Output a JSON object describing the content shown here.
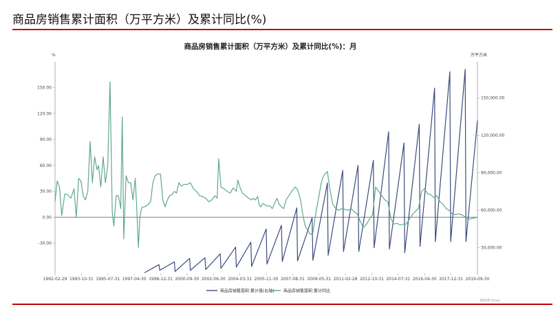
{
  "header": {
    "title": "商品房销售累计面积（万平方米）及累计同比(%)",
    "accent_color": "#c00000"
  },
  "chart_data": {
    "type": "line",
    "title": "商品房销售累计面积（万平方米）及累计同比(%)：月",
    "left_axis_unit": "%",
    "right_axis_unit": "万平方米",
    "y_left_ticks": [
      "150.00",
      "120.00",
      "90.00",
      "60.00",
      "30.00",
      "0.00",
      "-30.00"
    ],
    "y_left_values": [
      150,
      120,
      90,
      60,
      30,
      0,
      -30
    ],
    "y_left_range": [
      -65,
      180
    ],
    "y_right_ticks": [
      "150,000.00",
      "120,000.00",
      "90,000.00",
      "60,000.00",
      "30,000.00"
    ],
    "y_right_values": [
      150000,
      120000,
      90000,
      60000,
      30000
    ],
    "y_right_range": [
      9500,
      179000
    ],
    "x_ticks": [
      "1992-02-29",
      "1993-10-31",
      "1995-07-31",
      "1997-04-30",
      "1998-12-31",
      "2000-09-30",
      "2002-06-30",
      "2004-03-31",
      "2005-11-30",
      "2007-08-31",
      "2009-05-31",
      "2011-02-28",
      "2012-10-31",
      "2014-07-31",
      "2016-04-30",
      "2017-12-31",
      "2019-09-30"
    ],
    "x_range": [
      1992.16,
      2019.75
    ],
    "grid": false,
    "legend_position": "bottom",
    "series": [
      {
        "name": "商品房销售面积:累计值(右轴)",
        "axis": "right",
        "color": "#3b4a7a",
        "points": [
          [
            1998.0,
            10000
          ],
          [
            1998.95,
            16500
          ],
          [
            1999.0,
            12000
          ],
          [
            1999.95,
            18700
          ],
          [
            2000.0,
            11000
          ],
          [
            2000.95,
            21500
          ],
          [
            2001.0,
            12000
          ],
          [
            2001.95,
            22000
          ],
          [
            2002.0,
            12500
          ],
          [
            2002.95,
            25200
          ],
          [
            2003.0,
            13500
          ],
          [
            2003.95,
            30500
          ],
          [
            2004.0,
            14500
          ],
          [
            2004.95,
            34500
          ],
          [
            2005.0,
            15000
          ],
          [
            2005.95,
            45000
          ],
          [
            2006.0,
            17000
          ],
          [
            2006.95,
            48000
          ],
          [
            2007.0,
            19000
          ],
          [
            2007.95,
            62000
          ],
          [
            2008.0,
            19500
          ],
          [
            2008.95,
            54000
          ],
          [
            2009.0,
            20000
          ],
          [
            2009.95,
            82000
          ],
          [
            2010.0,
            24000
          ],
          [
            2010.95,
            92000
          ],
          [
            2011.0,
            27000
          ],
          [
            2011.95,
            96000
          ],
          [
            2012.0,
            27000
          ],
          [
            2012.95,
            100000
          ],
          [
            2013.0,
            30000
          ],
          [
            2013.95,
            123000
          ],
          [
            2014.0,
            29000
          ],
          [
            2014.95,
            114000
          ],
          [
            2015.0,
            26000
          ],
          [
            2015.95,
            129000
          ],
          [
            2016.0,
            31000
          ],
          [
            2016.95,
            158000
          ],
          [
            2017.0,
            35000
          ],
          [
            2017.95,
            171000
          ],
          [
            2018.0,
            35000
          ],
          [
            2018.95,
            173000
          ],
          [
            2019.0,
            35000
          ],
          [
            2019.75,
            132000
          ]
        ]
      },
      {
        "name": "商品房销售面积:累计同比",
        "axis": "left",
        "color": "#5fa88a",
        "points": [
          [
            1992.16,
            18
          ],
          [
            1992.3,
            42
          ],
          [
            1992.45,
            35
          ],
          [
            1992.6,
            2
          ],
          [
            1992.8,
            27
          ],
          [
            1993.0,
            26
          ],
          [
            1993.2,
            22
          ],
          [
            1993.4,
            33
          ],
          [
            1993.55,
            0
          ],
          [
            1993.7,
            45
          ],
          [
            1993.85,
            42
          ],
          [
            1994.0,
            25
          ],
          [
            1994.15,
            20
          ],
          [
            1994.3,
            30
          ],
          [
            1994.45,
            88
          ],
          [
            1994.6,
            40
          ],
          [
            1994.75,
            70
          ],
          [
            1994.9,
            55
          ],
          [
            1995.0,
            60
          ],
          [
            1995.15,
            35
          ],
          [
            1995.3,
            70
          ],
          [
            1995.45,
            40
          ],
          [
            1995.6,
            60
          ],
          [
            1995.75,
            157
          ],
          [
            1995.9,
            5
          ],
          [
            1996.0,
            -10
          ],
          [
            1996.15,
            25
          ],
          [
            1996.3,
            25
          ],
          [
            1996.45,
            10
          ],
          [
            1996.55,
            116
          ],
          [
            1996.65,
            -25
          ],
          [
            1996.8,
            48
          ],
          [
            1996.95,
            40
          ],
          [
            1997.1,
            40
          ],
          [
            1997.25,
            20
          ],
          [
            1997.4,
            45
          ],
          [
            1997.5,
            10
          ],
          [
            1997.6,
            -35
          ],
          [
            1997.7,
            0
          ],
          [
            1997.8,
            10
          ],
          [
            1997.9,
            12
          ],
          [
            1998.0,
            12
          ],
          [
            1998.2,
            14
          ],
          [
            1998.4,
            18
          ],
          [
            1998.55,
            40
          ],
          [
            1998.7,
            48
          ],
          [
            1998.85,
            50
          ],
          [
            1999.05,
            50
          ],
          [
            1999.2,
            20
          ],
          [
            1999.35,
            12
          ],
          [
            1999.5,
            20
          ],
          [
            1999.65,
            25
          ],
          [
            1999.8,
            26
          ],
          [
            1999.95,
            30
          ],
          [
            2000.1,
            28
          ],
          [
            2000.25,
            40
          ],
          [
            2000.4,
            36
          ],
          [
            2000.6,
            38
          ],
          [
            2000.8,
            38
          ],
          [
            2001.0,
            40
          ],
          [
            2001.2,
            33
          ],
          [
            2001.4,
            30
          ],
          [
            2001.6,
            25
          ],
          [
            2001.8,
            24
          ],
          [
            2002.0,
            22
          ],
          [
            2002.2,
            18
          ],
          [
            2002.4,
            20
          ],
          [
            2002.6,
            25
          ],
          [
            2002.75,
            22
          ],
          [
            2002.85,
            68
          ],
          [
            2003.0,
            35
          ],
          [
            2003.2,
            33
          ],
          [
            2003.4,
            30
          ],
          [
            2003.6,
            28
          ],
          [
            2003.8,
            34
          ],
          [
            2004.0,
            30
          ],
          [
            2004.1,
            43
          ],
          [
            2004.25,
            34
          ],
          [
            2004.4,
            28
          ],
          [
            2004.6,
            25
          ],
          [
            2004.8,
            22
          ],
          [
            2005.0,
            20
          ],
          [
            2005.1,
            22
          ],
          [
            2005.25,
            20
          ],
          [
            2005.4,
            24
          ],
          [
            2005.5,
            14
          ],
          [
            2005.6,
            12
          ],
          [
            2005.75,
            16
          ],
          [
            2005.9,
            14
          ],
          [
            2006.05,
            13
          ],
          [
            2006.2,
            13
          ],
          [
            2006.35,
            10
          ],
          [
            2006.5,
            16
          ],
          [
            2006.65,
            22
          ],
          [
            2006.8,
            15
          ],
          [
            2006.95,
            12
          ],
          [
            2007.1,
            10
          ],
          [
            2007.25,
            20
          ],
          [
            2007.4,
            24
          ],
          [
            2007.55,
            28
          ],
          [
            2007.7,
            32
          ],
          [
            2007.85,
            35
          ],
          [
            2008.0,
            32
          ],
          [
            2008.2,
            20
          ],
          [
            2008.35,
            2
          ],
          [
            2008.5,
            -10
          ],
          [
            2008.65,
            -15
          ],
          [
            2008.85,
            -20
          ],
          [
            2009.0,
            -18
          ],
          [
            2009.2,
            5
          ],
          [
            2009.4,
            25
          ],
          [
            2009.55,
            40
          ],
          [
            2009.7,
            48
          ],
          [
            2009.85,
            51
          ],
          [
            2009.95,
            53
          ],
          [
            2010.1,
            34
          ],
          [
            2010.3,
            15
          ],
          [
            2010.5,
            10
          ],
          [
            2010.7,
            8
          ],
          [
            2010.9,
            10
          ],
          [
            2011.1,
            9
          ],
          [
            2011.3,
            8
          ],
          [
            2011.5,
            10
          ],
          [
            2011.7,
            6
          ],
          [
            2011.9,
            4
          ],
          [
            2012.1,
            -5
          ],
          [
            2012.3,
            -12
          ],
          [
            2012.5,
            -8
          ],
          [
            2012.7,
            -2
          ],
          [
            2012.9,
            3
          ],
          [
            2013.1,
            35
          ],
          [
            2013.3,
            30
          ],
          [
            2013.5,
            25
          ],
          [
            2013.7,
            20
          ],
          [
            2013.9,
            18
          ],
          [
            2014.1,
            -2
          ],
          [
            2014.3,
            -8
          ],
          [
            2014.5,
            -7
          ],
          [
            2014.7,
            -9
          ],
          [
            2014.9,
            -8
          ],
          [
            2015.1,
            -8
          ],
          [
            2015.3,
            -2
          ],
          [
            2015.5,
            3
          ],
          [
            2015.7,
            7
          ],
          [
            2015.9,
            10
          ],
          [
            2016.1,
            30
          ],
          [
            2016.3,
            33
          ],
          [
            2016.5,
            27
          ],
          [
            2016.7,
            26
          ],
          [
            2016.9,
            23
          ],
          [
            2017.1,
            25
          ],
          [
            2017.3,
            18
          ],
          [
            2017.5,
            15
          ],
          [
            2017.7,
            10
          ],
          [
            2017.9,
            8
          ],
          [
            2018.1,
            4
          ],
          [
            2018.3,
            3
          ],
          [
            2018.5,
            4
          ],
          [
            2018.7,
            3
          ],
          [
            2018.9,
            1
          ],
          [
            2019.1,
            -2
          ],
          [
            2019.3,
            -2
          ],
          [
            2019.5,
            -1
          ],
          [
            2019.75,
            0
          ]
        ]
      }
    ]
  },
  "watermark": "研究所 Wind"
}
